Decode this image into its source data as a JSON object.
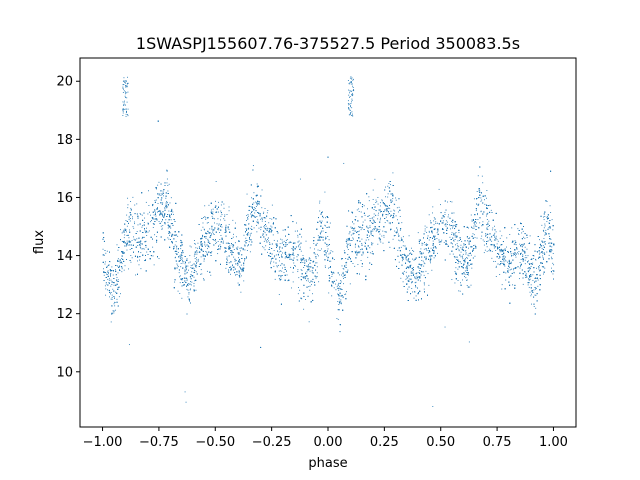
{
  "chart_data": {
    "type": "scatter",
    "title": "1SWASPJ155607.76-375527.5 Period 350083.5s",
    "xlabel": "phase",
    "ylabel": "flux",
    "xlim": [
      -1.1,
      1.1
    ],
    "ylim": [
      8.1,
      20.8
    ],
    "xticks": [
      -1.0,
      -0.75,
      -0.5,
      -0.25,
      0.0,
      0.25,
      0.5,
      0.75,
      1.0
    ],
    "xtick_labels": [
      "−1.00",
      "−0.75",
      "−0.50",
      "−0.25",
      "0.00",
      "0.25",
      "0.50",
      "0.75",
      "1.00"
    ],
    "yticks": [
      10,
      12,
      14,
      16,
      18,
      20
    ],
    "ytick_labels": [
      "10",
      "12",
      "14",
      "16",
      "18",
      "20"
    ],
    "grid": false,
    "marker_color": "#1f77b4",
    "n_points": 9000,
    "phase_range": [
      -1.0,
      1.0
    ],
    "periodic_repeat": 1.0,
    "baseline_flux": 14.2,
    "scatter_band": [
      11.8,
      17.2
    ],
    "envelope": [
      {
        "phase": 0.0,
        "flux": 14.0,
        "spread": 1.1
      },
      {
        "phase": 0.05,
        "flux": 12.6,
        "spread": 0.9
      },
      {
        "phase": 0.1,
        "flux": 14.8,
        "spread": 1.1
      },
      {
        "phase": 0.17,
        "flux": 14.6,
        "spread": 1.1
      },
      {
        "phase": 0.22,
        "flux": 15.2,
        "spread": 1.1
      },
      {
        "phase": 0.28,
        "flux": 15.8,
        "spread": 1.1
      },
      {
        "phase": 0.33,
        "flux": 14.0,
        "spread": 1.0
      },
      {
        "phase": 0.38,
        "flux": 13.2,
        "spread": 0.9
      },
      {
        "phase": 0.45,
        "flux": 14.4,
        "spread": 1.0
      },
      {
        "phase": 0.52,
        "flux": 15.2,
        "spread": 1.1
      },
      {
        "phase": 0.58,
        "flux": 14.0,
        "spread": 1.0
      },
      {
        "phase": 0.62,
        "flux": 13.8,
        "spread": 0.9
      },
      {
        "phase": 0.67,
        "flux": 15.8,
        "spread": 1.1
      },
      {
        "phase": 0.73,
        "flux": 14.6,
        "spread": 1.0
      },
      {
        "phase": 0.8,
        "flux": 13.8,
        "spread": 0.9
      },
      {
        "phase": 0.86,
        "flux": 14.2,
        "spread": 1.1
      },
      {
        "phase": 0.92,
        "flux": 13.0,
        "spread": 1.1
      },
      {
        "phase": 0.97,
        "flux": 15.2,
        "spread": 1.2
      },
      {
        "phase": 1.0,
        "flux": 14.0,
        "spread": 1.1
      }
    ],
    "flare": {
      "phase": 0.1,
      "flux_range": [
        18.8,
        20.2
      ]
    },
    "outlier_flux_range": [
      8.7,
      18.8
    ]
  }
}
